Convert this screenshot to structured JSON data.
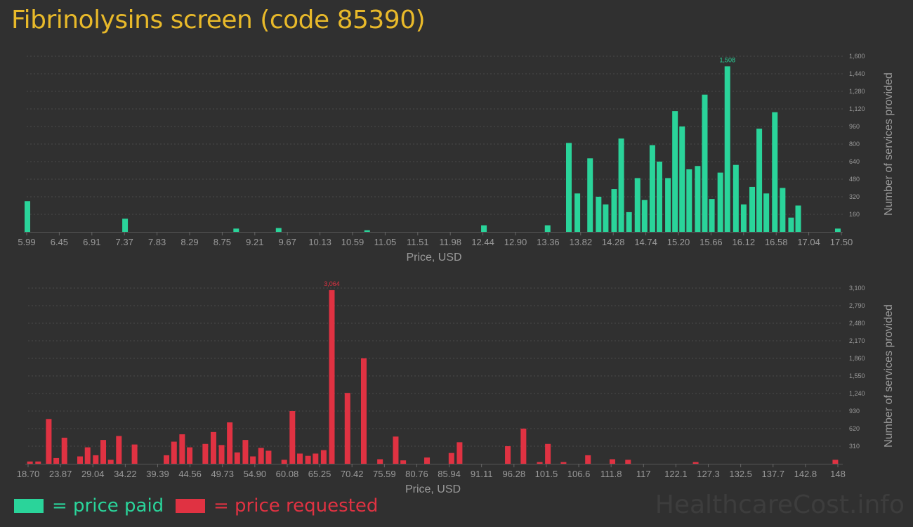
{
  "title": "Fibrinolysins screen (code 85390)",
  "legend": {
    "paid_label": "= price paid",
    "requested_label": "= price requested"
  },
  "watermark": "HealthcareCost.info",
  "colors": {
    "paid": "#2ad49a",
    "requested": "#e03242",
    "title": "#e8b92a"
  },
  "chart_data": [
    {
      "type": "bar",
      "name": "price-paid",
      "xlabel": "Price, USD",
      "ylabel": "Number of services provided",
      "x_ticks": [
        "5.99",
        "6.45",
        "6.91",
        "7.37",
        "7.83",
        "8.29",
        "8.75",
        "9.21",
        "9.67",
        "10.13",
        "10.59",
        "11.05",
        "11.51",
        "11.98",
        "12.44",
        "12.90",
        "13.36",
        "13.82",
        "14.28",
        "14.74",
        "15.20",
        "15.66",
        "16.12",
        "16.58",
        "17.04",
        "17.50"
      ],
      "x_range": [
        5.99,
        17.5
      ],
      "y_ticks": [
        "160",
        "320",
        "480",
        "640",
        "800",
        "960",
        "1,120",
        "1,280",
        "1,440",
        "1,600"
      ],
      "ylim": [
        0,
        1600
      ],
      "peak_label": "1,508",
      "bars": [
        {
          "x": 6.0,
          "value": 280
        },
        {
          "x": 7.38,
          "value": 120
        },
        {
          "x": 8.95,
          "value": 30
        },
        {
          "x": 9.55,
          "value": 35
        },
        {
          "x": 10.8,
          "value": 15
        },
        {
          "x": 12.45,
          "value": 60
        },
        {
          "x": 13.35,
          "value": 60
        },
        {
          "x": 13.65,
          "value": 810
        },
        {
          "x": 13.77,
          "value": 350
        },
        {
          "x": 13.95,
          "value": 670
        },
        {
          "x": 14.07,
          "value": 320
        },
        {
          "x": 14.17,
          "value": 250
        },
        {
          "x": 14.29,
          "value": 390
        },
        {
          "x": 14.39,
          "value": 850
        },
        {
          "x": 14.5,
          "value": 180
        },
        {
          "x": 14.62,
          "value": 490
        },
        {
          "x": 14.72,
          "value": 290
        },
        {
          "x": 14.83,
          "value": 790
        },
        {
          "x": 14.93,
          "value": 640
        },
        {
          "x": 15.05,
          "value": 490
        },
        {
          "x": 15.15,
          "value": 1100
        },
        {
          "x": 15.25,
          "value": 960
        },
        {
          "x": 15.35,
          "value": 570
        },
        {
          "x": 15.47,
          "value": 600
        },
        {
          "x": 15.57,
          "value": 1250
        },
        {
          "x": 15.67,
          "value": 300
        },
        {
          "x": 15.79,
          "value": 540
        },
        {
          "x": 15.89,
          "value": 1508
        },
        {
          "x": 16.01,
          "value": 610
        },
        {
          "x": 16.12,
          "value": 250
        },
        {
          "x": 16.24,
          "value": 410
        },
        {
          "x": 16.34,
          "value": 940
        },
        {
          "x": 16.44,
          "value": 350
        },
        {
          "x": 16.56,
          "value": 1090
        },
        {
          "x": 16.67,
          "value": 400
        },
        {
          "x": 16.79,
          "value": 130
        },
        {
          "x": 16.89,
          "value": 240
        },
        {
          "x": 17.45,
          "value": 30
        }
      ]
    },
    {
      "type": "bar",
      "name": "price-requested",
      "xlabel": "Price, USD",
      "ylabel": "Number of services provided",
      "x_ticks": [
        "18.70",
        "23.87",
        "29.04",
        "34.22",
        "39.39",
        "44.56",
        "49.73",
        "54.90",
        "60.08",
        "65.25",
        "70.42",
        "75.59",
        "80.76",
        "85.94",
        "91.11",
        "96.28",
        "101.5",
        "106.6",
        "111.8",
        "117",
        "122.1",
        "127.3",
        "132.5",
        "137.7",
        "142.8",
        "148"
      ],
      "x_range": [
        18.7,
        148
      ],
      "y_ticks": [
        "310",
        "620",
        "930",
        "1,240",
        "1,550",
        "1,860",
        "2,170",
        "2,480",
        "2,790",
        "3,100"
      ],
      "ylim": [
        0,
        3100
      ],
      "peak_label": "3,064",
      "bars": [
        {
          "x": 19.0,
          "value": 40
        },
        {
          "x": 20.3,
          "value": 40
        },
        {
          "x": 22.0,
          "value": 790
        },
        {
          "x": 23.2,
          "value": 100
        },
        {
          "x": 24.5,
          "value": 460
        },
        {
          "x": 27.0,
          "value": 130
        },
        {
          "x": 28.2,
          "value": 290
        },
        {
          "x": 29.5,
          "value": 150
        },
        {
          "x": 30.7,
          "value": 420
        },
        {
          "x": 31.9,
          "value": 70
        },
        {
          "x": 33.2,
          "value": 490
        },
        {
          "x": 35.7,
          "value": 340
        },
        {
          "x": 40.8,
          "value": 150
        },
        {
          "x": 42.0,
          "value": 390
        },
        {
          "x": 43.3,
          "value": 520
        },
        {
          "x": 44.5,
          "value": 290
        },
        {
          "x": 47.0,
          "value": 350
        },
        {
          "x": 48.3,
          "value": 560
        },
        {
          "x": 49.6,
          "value": 330
        },
        {
          "x": 50.9,
          "value": 730
        },
        {
          "x": 52.1,
          "value": 200
        },
        {
          "x": 53.4,
          "value": 420
        },
        {
          "x": 54.6,
          "value": 130
        },
        {
          "x": 55.9,
          "value": 280
        },
        {
          "x": 57.1,
          "value": 230
        },
        {
          "x": 59.6,
          "value": 70
        },
        {
          "x": 60.9,
          "value": 930
        },
        {
          "x": 62.1,
          "value": 180
        },
        {
          "x": 63.4,
          "value": 140
        },
        {
          "x": 64.6,
          "value": 180
        },
        {
          "x": 65.9,
          "value": 240
        },
        {
          "x": 67.2,
          "value": 3064
        },
        {
          "x": 69.7,
          "value": 1250
        },
        {
          "x": 72.3,
          "value": 1860
        },
        {
          "x": 74.9,
          "value": 80
        },
        {
          "x": 77.4,
          "value": 480
        },
        {
          "x": 78.6,
          "value": 60
        },
        {
          "x": 82.4,
          "value": 110
        },
        {
          "x": 86.3,
          "value": 190
        },
        {
          "x": 87.6,
          "value": 380
        },
        {
          "x": 95.3,
          "value": 310
        },
        {
          "x": 97.8,
          "value": 620
        },
        {
          "x": 100.4,
          "value": 30
        },
        {
          "x": 101.7,
          "value": 350
        },
        {
          "x": 104.2,
          "value": 30
        },
        {
          "x": 108.1,
          "value": 150
        },
        {
          "x": 112.0,
          "value": 80
        },
        {
          "x": 114.5,
          "value": 70
        },
        {
          "x": 125.3,
          "value": 30
        },
        {
          "x": 147.6,
          "value": 70
        }
      ]
    }
  ]
}
